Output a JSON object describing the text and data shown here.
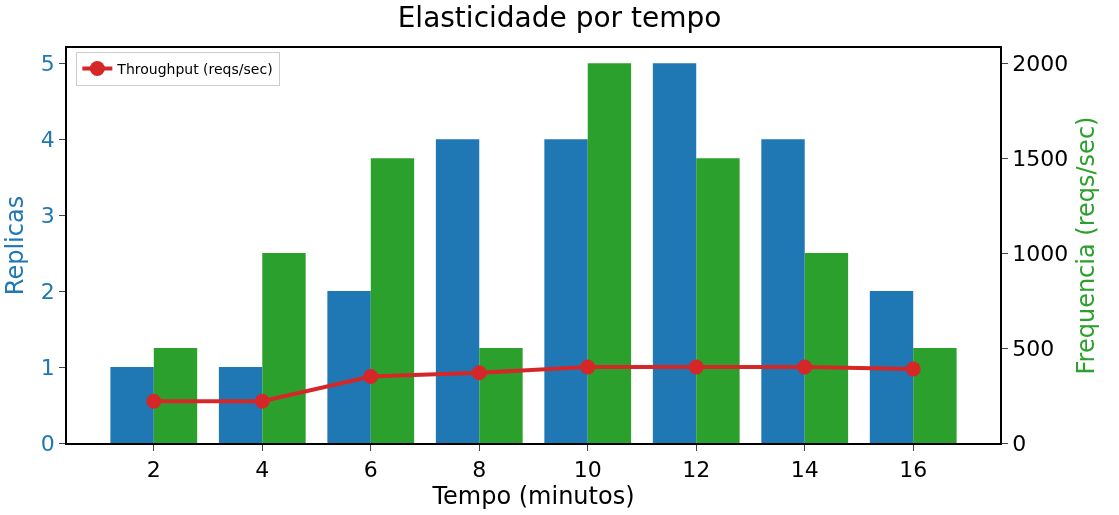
{
  "chart_data": {
    "type": "bar",
    "title": "Elasticidade por tempo",
    "xlabel": "Tempo (minutos)",
    "ylabel": "Replicas",
    "y2label": "Frequencia (reqs/sec)",
    "x": [
      2,
      4,
      6,
      8,
      10,
      12,
      14,
      16
    ],
    "series": [
      {
        "color": "#1f77b4",
        "values": [
          1,
          1,
          2,
          4,
          4,
          5,
          4,
          2
        ]
      },
      {
        "type": "bar",
        "axis": "y2",
        "color": "#2ca02c",
        "values": [
          500,
          1000,
          1500,
          500,
          2000,
          1500,
          1000,
          500
        ]
      },
      {
        "type": "line",
        "axis": "y2",
        "name": "Throughput (reqs/sec)",
        "color": "#d62728",
        "values": [
          220,
          220,
          350,
          370,
          400,
          400,
          400,
          390
        ]
      }
    ],
    "xlim": [
      0.4,
      17.6
    ],
    "xticks": [
      2,
      4,
      6,
      8,
      10,
      12,
      14,
      16
    ],
    "ylim": [
      0,
      5.2
    ],
    "yticks": [
      0,
      1,
      2,
      3,
      4,
      5
    ],
    "y2lim": [
      0,
      2080
    ],
    "y2ticks": [
      0,
      500,
      1000,
      1500,
      2000
    ],
    "grid": false,
    "legend": "top left",
    "marker": "circle",
    "line_style": "solid"
  }
}
